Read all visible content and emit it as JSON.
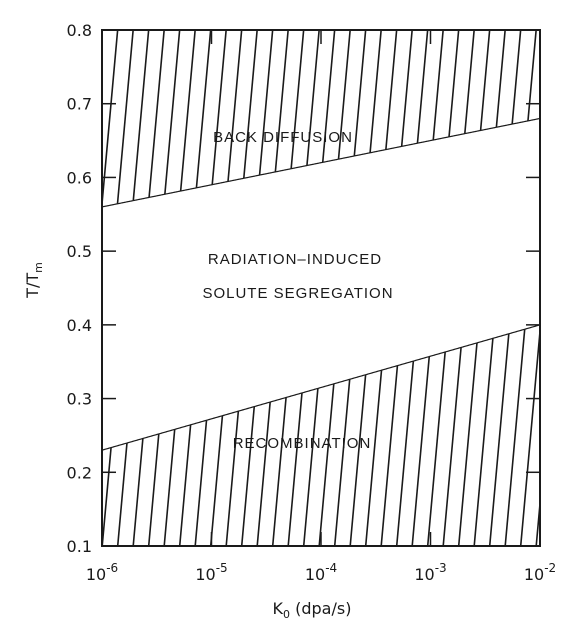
{
  "chart_data": {
    "type": "area",
    "xscale": "log",
    "xlim": [
      1e-06,
      0.01
    ],
    "ylim": [
      0.1,
      0.8
    ],
    "x_ticks": [
      {
        "value": 1e-06,
        "base": "10",
        "exp": "-6"
      },
      {
        "value": 1e-05,
        "base": "10",
        "exp": "-5"
      },
      {
        "value": 0.0001,
        "base": "10",
        "exp": "-4"
      },
      {
        "value": 0.001,
        "base": "10",
        "exp": "-3"
      },
      {
        "value": 0.01,
        "base": "10",
        "exp": "-2"
      }
    ],
    "y_ticks": [
      {
        "value": 0.1,
        "label": "0.1"
      },
      {
        "value": 0.2,
        "label": "0.2"
      },
      {
        "value": 0.3,
        "label": "0.3"
      },
      {
        "value": 0.4,
        "label": "0.4"
      },
      {
        "value": 0.5,
        "label": "0.5"
      },
      {
        "value": 0.6,
        "label": "0.6"
      },
      {
        "value": 0.7,
        "label": "0.7"
      },
      {
        "value": 0.8,
        "label": "0.8"
      }
    ],
    "xlabel": {
      "main": "K",
      "sub": "0",
      "rest": " (dpa/s)"
    },
    "ylabel": {
      "main": "T/T",
      "sub": "m"
    },
    "boundaries": [
      {
        "name": "upper",
        "x": [
          1e-06,
          0.01
        ],
        "y": [
          0.56,
          0.68
        ]
      },
      {
        "name": "lower",
        "x": [
          1e-06,
          0.01
        ],
        "y": [
          0.23,
          0.4
        ]
      }
    ],
    "regions": [
      {
        "label": "BACK DIFFUSION",
        "hatched": true
      },
      {
        "label": "RADIATION-INDUCED SOLUTE SEGREGATION",
        "label_lines": [
          "RADIATION–INDUCED",
          "SOLUTE SEGREGATION"
        ],
        "hatched": false
      },
      {
        "label": "RECOMBINATION",
        "hatched": true
      }
    ],
    "grid": false,
    "colors": {
      "ink": "#1a1a1a",
      "background": "#ffffff"
    }
  }
}
